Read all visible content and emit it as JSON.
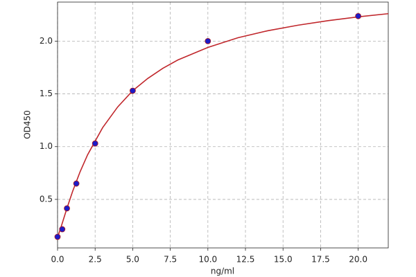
{
  "chart_data": {
    "type": "scatter",
    "xlabel": "ng/ml",
    "ylabel": "OD450",
    "xlim": [
      0,
      22
    ],
    "ylim": [
      0.04,
      2.37
    ],
    "xticks": [
      {
        "value": 0,
        "label": "0.0"
      },
      2.5,
      {
        "value": 5,
        "label": "5.0"
      },
      7.5,
      {
        "value": 10,
        "label": "10.0"
      },
      12.5,
      {
        "value": 15,
        "label": "15.0"
      },
      17.5,
      {
        "value": 20,
        "label": "20.0"
      }
    ],
    "yticks": [
      0.5,
      {
        "value": 1,
        "label": "1.0"
      },
      1.5,
      {
        "value": 2,
        "label": "2.0"
      }
    ],
    "grid": true,
    "series": [
      {
        "style": "line",
        "color": "#c0262b",
        "x": [
          0,
          0.25,
          0.625,
          1,
          1.5,
          2,
          3,
          4,
          5,
          6,
          7,
          8,
          10,
          12,
          14,
          16,
          18,
          20,
          22
        ],
        "values": [
          0.14,
          0.246,
          0.416,
          0.575,
          0.762,
          0.923,
          1.18,
          1.376,
          1.53,
          1.646,
          1.742,
          1.821,
          1.94,
          2.032,
          2.099,
          2.151,
          2.194,
          2.23,
          2.26
        ]
      },
      {
        "style": "points",
        "color": "#1c1cc8",
        "edge": "#b01818",
        "x": [
          0,
          0.3125,
          0.625,
          1.25,
          2.5,
          5,
          10,
          20
        ],
        "values": [
          0.145,
          0.217,
          0.415,
          0.65,
          1.03,
          1.53,
          2.0,
          2.237
        ]
      }
    ]
  }
}
